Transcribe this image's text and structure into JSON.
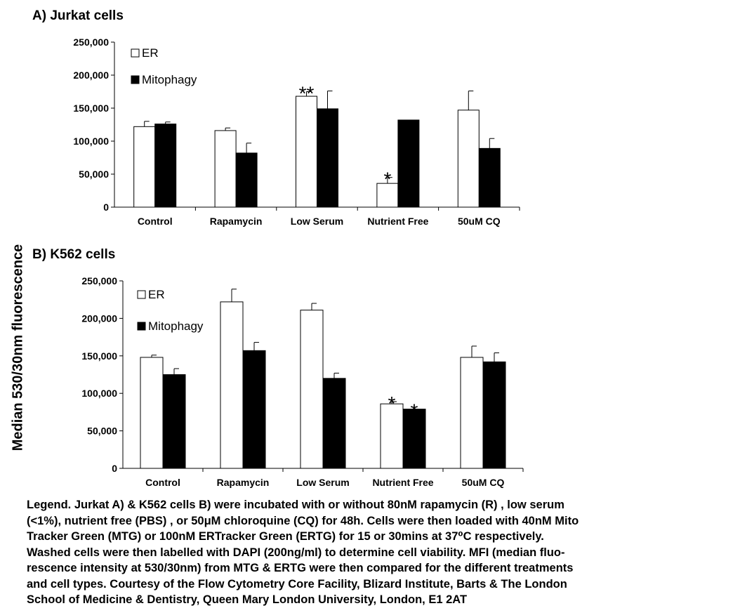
{
  "shared_ylabel": "Median 530/30nm fluorescence",
  "legend_labels": [
    "ER",
    "Mitophagy"
  ],
  "colors": {
    "ER": "#ffffff",
    "Mitophagy": "#000000",
    "axis": "#000000"
  },
  "chart_data": [
    {
      "type": "bar",
      "title": "A) Jurkat cells",
      "ylabel": "Median 530/30nm fluorescence",
      "categories": [
        "Control",
        "Rapamycin",
        "Low Serum",
        "Nutrient Free",
        "50uM CQ"
      ],
      "ylim": [
        0,
        250000
      ],
      "yticks": [
        "0",
        "50,000",
        "100,000",
        "150,000",
        "200,000",
        "250,000"
      ],
      "legend_position": "top-left",
      "series": [
        {
          "name": "ER",
          "values": [
            122000,
            116000,
            168000,
            36000,
            147000
          ],
          "errors": [
            8000,
            4000,
            7000,
            9000,
            29000
          ]
        },
        {
          "name": "Mitophagy",
          "values": [
            126000,
            82000,
            149000,
            132000,
            89000
          ],
          "errors": [
            3000,
            15000,
            27000,
            0,
            15000
          ]
        }
      ],
      "annotations": [
        {
          "category": "Low Serum",
          "series": "ER",
          "text": "**"
        },
        {
          "category": "Nutrient Free",
          "series": "ER",
          "text": "*"
        }
      ]
    },
    {
      "type": "bar",
      "title": "B) K562 cells",
      "ylabel": "Median 530/30nm fluorescence",
      "categories": [
        "Control",
        "Rapamycin",
        "Low Serum",
        "Nutrient Free",
        "50uM CQ"
      ],
      "ylim": [
        0,
        250000
      ],
      "yticks": [
        "0",
        "50,000",
        "100,000",
        "150,000",
        "200,000",
        "250,000"
      ],
      "legend_position": "top-left",
      "series": [
        {
          "name": "ER",
          "values": [
            148000,
            222000,
            211000,
            86000,
            148000
          ],
          "errors": [
            3000,
            17000,
            9000,
            3000,
            15000
          ]
        },
        {
          "name": "Mitophagy",
          "values": [
            125000,
            157000,
            120000,
            79000,
            142000
          ],
          "errors": [
            8000,
            11000,
            7000,
            0,
            12000
          ]
        }
      ],
      "annotations": [
        {
          "category": "Nutrient Free",
          "series": "ER",
          "text": "*"
        },
        {
          "category": "Nutrient Free",
          "series": "Mitophagy",
          "text": "*"
        }
      ]
    }
  ],
  "caption_lines": [
    "Legend. Jurkat A)  & K562 cells B) were incubated with or without 80nM rapamycin (R) , low serum",
    "(<1%), nutrient free (PBS) , or 50μM chloroquine (CQ) for 48h. Cells were then loaded with 40nM Mito",
    "Tracker Green (MTG) or 100nM ERTracker Green (ERTG) for 15 or 30mins at 37⁰C respectively.",
    "Washed cells were then labelled  with DAPI (200ng/ml) to determine cell viability. MFI (median fluo-",
    "rescence intensity at 530/30nm) from MTG & ERTG were then compared for the different treatments",
    "and cell types. Courtesy of the Flow Cytometry Core Facility, Blizard Institute, Barts & The London",
    "School of Medicine & Dentistry, Queen Mary London University, London, E1 2AT"
  ]
}
